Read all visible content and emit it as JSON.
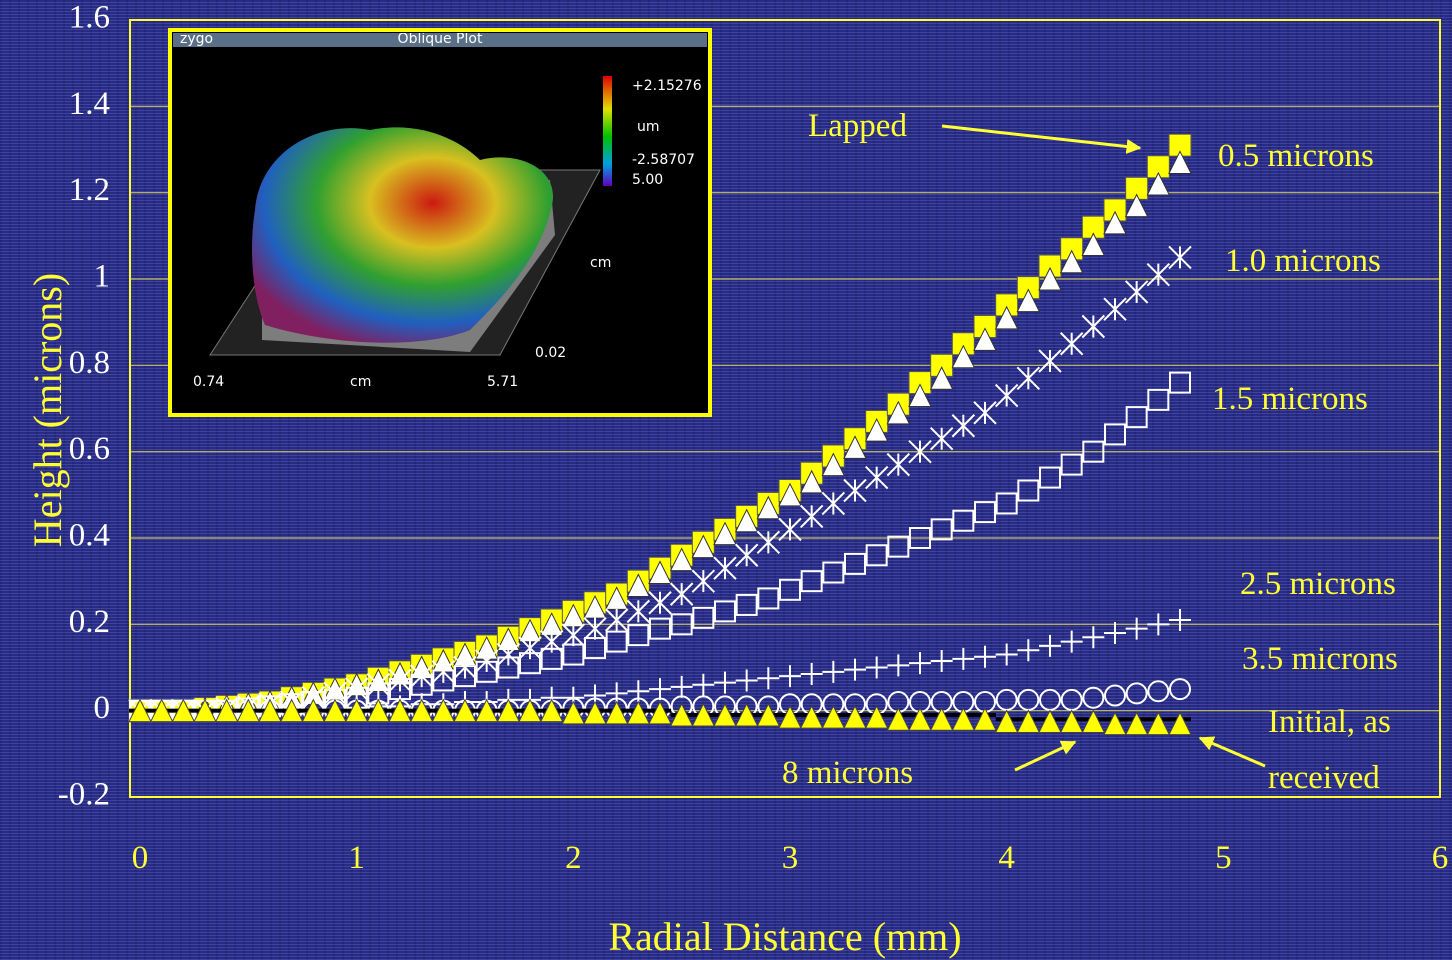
{
  "chart_data": {
    "type": "scatter",
    "x_label": "Radial Distance (mm)",
    "y_label": "Height (microns)",
    "xlim": [
      0,
      6
    ],
    "xticks": [
      0,
      1,
      2,
      3,
      4,
      5,
      6
    ],
    "ylim": [
      -0.2,
      1.6
    ],
    "yticks": [
      -0.2,
      0,
      0.2,
      0.4,
      0.6,
      0.8,
      1,
      1.2,
      1.4,
      1.6
    ],
    "grid": true,
    "x": [
      0,
      0.1,
      0.2,
      0.3,
      0.4,
      0.5,
      0.6,
      0.7,
      0.8,
      0.9,
      1,
      1.1,
      1.2,
      1.3,
      1.4,
      1.5,
      1.6,
      1.7,
      1.8,
      1.9,
      2,
      2.1,
      2.2,
      2.3,
      2.4,
      2.5,
      2.6,
      2.7,
      2.8,
      2.9,
      3,
      3.1,
      3.2,
      3.3,
      3.4,
      3.5,
      3.6,
      3.7,
      3.8,
      3.9,
      4,
      4.1,
      4.2,
      4.3,
      4.4,
      4.5,
      4.6,
      4.7,
      4.8
    ],
    "series": [
      {
        "name": "Lapped",
        "color": "#ffff00",
        "marker": "square-filled",
        "values": [
          0,
          0,
          0,
          0.005,
          0.01,
          0.015,
          0.02,
          0.03,
          0.04,
          0.05,
          0.06,
          0.075,
          0.09,
          0.105,
          0.12,
          0.135,
          0.15,
          0.17,
          0.19,
          0.21,
          0.23,
          0.25,
          0.27,
          0.3,
          0.33,
          0.36,
          0.39,
          0.42,
          0.45,
          0.48,
          0.51,
          0.55,
          0.59,
          0.63,
          0.67,
          0.71,
          0.76,
          0.8,
          0.85,
          0.89,
          0.94,
          0.98,
          1.03,
          1.07,
          1.12,
          1.16,
          1.21,
          1.26,
          1.31
        ]
      },
      {
        "name": "0.5 microns",
        "color": "#ffffff",
        "marker": "triangle",
        "values": [
          0,
          0,
          0,
          0.005,
          0.01,
          0.015,
          0.02,
          0.03,
          0.04,
          0.05,
          0.06,
          0.07,
          0.085,
          0.1,
          0.115,
          0.13,
          0.145,
          0.165,
          0.185,
          0.2,
          0.22,
          0.24,
          0.26,
          0.29,
          0.32,
          0.35,
          0.38,
          0.41,
          0.44,
          0.47,
          0.5,
          0.53,
          0.57,
          0.61,
          0.65,
          0.69,
          0.73,
          0.77,
          0.82,
          0.86,
          0.91,
          0.95,
          1.0,
          1.04,
          1.08,
          1.13,
          1.17,
          1.22,
          1.27
        ]
      },
      {
        "name": "1.0 microns",
        "color": "#ffffff",
        "marker": "asterisk",
        "values": [
          0,
          0,
          0,
          0,
          0.005,
          0.01,
          0.015,
          0.02,
          0.03,
          0.04,
          0.05,
          0.06,
          0.07,
          0.08,
          0.09,
          0.1,
          0.115,
          0.13,
          0.145,
          0.16,
          0.175,
          0.19,
          0.21,
          0.23,
          0.25,
          0.27,
          0.3,
          0.33,
          0.36,
          0.39,
          0.42,
          0.45,
          0.48,
          0.51,
          0.54,
          0.57,
          0.6,
          0.63,
          0.66,
          0.69,
          0.73,
          0.77,
          0.81,
          0.85,
          0.89,
          0.93,
          0.97,
          1.01,
          1.05
        ]
      },
      {
        "name": "1.5 microns",
        "color": "#ffffff",
        "marker": "square-open",
        "values": [
          0,
          0,
          0,
          0,
          0,
          0.005,
          0.01,
          0.015,
          0.02,
          0.025,
          0.03,
          0.04,
          0.05,
          0.06,
          0.07,
          0.08,
          0.09,
          0.1,
          0.11,
          0.12,
          0.13,
          0.145,
          0.16,
          0.175,
          0.19,
          0.2,
          0.215,
          0.23,
          0.245,
          0.26,
          0.28,
          0.3,
          0.32,
          0.34,
          0.36,
          0.38,
          0.4,
          0.42,
          0.44,
          0.46,
          0.48,
          0.51,
          0.54,
          0.57,
          0.6,
          0.64,
          0.68,
          0.72,
          0.76
        ]
      },
      {
        "name": "2.5 microns",
        "color": "#ffffff",
        "marker": "plus",
        "values": [
          0,
          0,
          0,
          0,
          0,
          0,
          0,
          0,
          0,
          0,
          0.005,
          0.01,
          0.01,
          0.015,
          0.015,
          0.02,
          0.02,
          0.025,
          0.025,
          0.03,
          0.03,
          0.035,
          0.04,
          0.045,
          0.05,
          0.055,
          0.06,
          0.065,
          0.07,
          0.075,
          0.08,
          0.085,
          0.09,
          0.095,
          0.1,
          0.105,
          0.11,
          0.115,
          0.12,
          0.125,
          0.13,
          0.14,
          0.15,
          0.16,
          0.17,
          0.18,
          0.19,
          0.2,
          0.21
        ]
      },
      {
        "name": "3.5 microns",
        "color": "#ffffff",
        "marker": "circle",
        "values": [
          0,
          0,
          0,
          0,
          0,
          0,
          0,
          0,
          0,
          0,
          0,
          0,
          0,
          0,
          0,
          0,
          0,
          0,
          0,
          0,
          0.005,
          0.005,
          0.005,
          0.005,
          0.005,
          0.01,
          0.01,
          0.01,
          0.01,
          0.01,
          0.015,
          0.015,
          0.015,
          0.015,
          0.015,
          0.02,
          0.02,
          0.02,
          0.02,
          0.02,
          0.025,
          0.025,
          0.025,
          0.025,
          0.03,
          0.035,
          0.04,
          0.045,
          0.05
        ]
      },
      {
        "name": "Initial, as received",
        "color": "#000000",
        "marker": "dash",
        "values": [
          0,
          0,
          0,
          0,
          0,
          0,
          0,
          0,
          0,
          0,
          0,
          0,
          0,
          0,
          0,
          0,
          0,
          0,
          0,
          0,
          0,
          0,
          0,
          0,
          0,
          -0.01,
          -0.01,
          -0.01,
          -0.01,
          -0.01,
          -0.01,
          -0.01,
          -0.01,
          -0.01,
          -0.01,
          -0.01,
          -0.01,
          -0.01,
          -0.01,
          -0.01,
          -0.02,
          -0.02,
          -0.02,
          -0.02,
          -0.02,
          -0.02,
          -0.02,
          -0.02,
          -0.02
        ]
      },
      {
        "name": "8 microns",
        "color": "#ffff00",
        "marker": "triangle-filled",
        "values": [
          0,
          0,
          0,
          0,
          0,
          0,
          0,
          0,
          0,
          0,
          0,
          0,
          0,
          0,
          0,
          0,
          0,
          0,
          0,
          0,
          -0.005,
          -0.005,
          -0.005,
          -0.005,
          -0.005,
          -0.01,
          -0.01,
          -0.01,
          -0.01,
          -0.01,
          -0.015,
          -0.015,
          -0.015,
          -0.015,
          -0.015,
          -0.02,
          -0.02,
          -0.02,
          -0.02,
          -0.02,
          -0.025,
          -0.025,
          -0.025,
          -0.025,
          -0.025,
          -0.03,
          -0.03,
          -0.03,
          -0.03
        ]
      }
    ],
    "inset": {
      "title": "Oblique Plot",
      "brand": "zygo",
      "max": "+2.15276",
      "unit": "um",
      "min": "-2.58707",
      "z_top": "5.00",
      "y_unit": "cm",
      "y_min": "0.02",
      "x_min": "0.74",
      "x_unit": "cm",
      "x_max": "5.71"
    }
  }
}
